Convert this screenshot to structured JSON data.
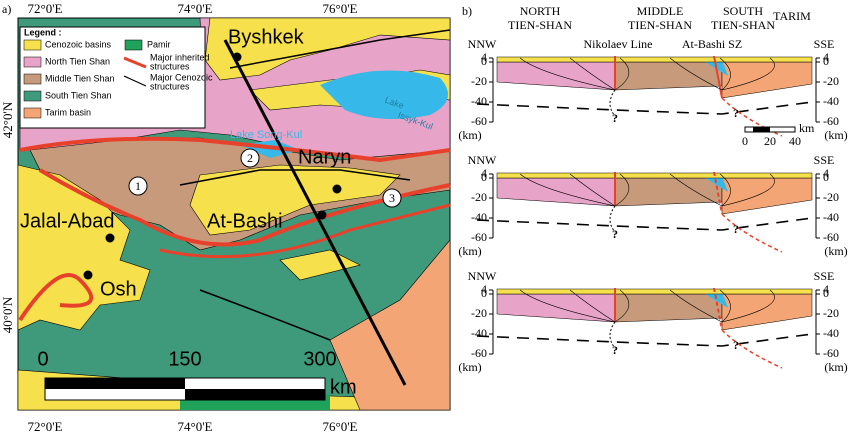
{
  "panel_a": {
    "label": "a)",
    "longitudes": [
      "72°0'E",
      "74°0'E",
      "76°0'E"
    ],
    "latitudes": [
      "42°0'N",
      "40°0'N"
    ],
    "legend": {
      "title": "Legend :",
      "items": [
        {
          "label": "Cenozoic basins"
        },
        {
          "label": "Pamir"
        },
        {
          "label": "North Tien Shan"
        },
        {
          "label": [
            "Major inherited",
            "structures"
          ]
        },
        {
          "label": "Middle Tien Shan"
        },
        {
          "label": [
            "Major Cenozoic",
            "structures"
          ]
        },
        {
          "label": "South Tien Shan"
        },
        {
          "label": "Tarim basin"
        }
      ]
    },
    "places": {
      "byshkek": "Byshkek",
      "naryn": "Naryn",
      "at_bashi": "At-Bashi",
      "jalal_abad": "Jalal-Abad",
      "osh": "Osh"
    },
    "lake_issyk_kul": [
      "Lake",
      "Issyk-Kul"
    ],
    "lake_song_kul": "Lake Song-Kul",
    "profile_markers": [
      "1",
      "2",
      "3"
    ],
    "scale": {
      "ticks": [
        "0",
        "150",
        "300"
      ],
      "unit": "km"
    }
  },
  "panel_b": {
    "label": "b)",
    "headers": [
      {
        "top": "NORTH",
        "bottom": "TIEN-SHAN"
      },
      {
        "top": "MIDDLE",
        "bottom": "TIEN-SHAN"
      },
      {
        "top": "SOUTH",
        "bottom": "TIEN-SHAN"
      },
      {
        "top": "TARIM"
      }
    ],
    "structures": [
      "Nikolaev Line",
      "At-Bashi SZ"
    ],
    "left_end": "NNW",
    "right_end": "SSE",
    "depth_ticks": [
      4,
      0,
      -20,
      -40,
      -60
    ],
    "depth_unit": "(km)",
    "uncertain": "?",
    "scale": {
      "ticks": [
        "0",
        "20",
        "40"
      ],
      "unit": "km"
    }
  }
}
